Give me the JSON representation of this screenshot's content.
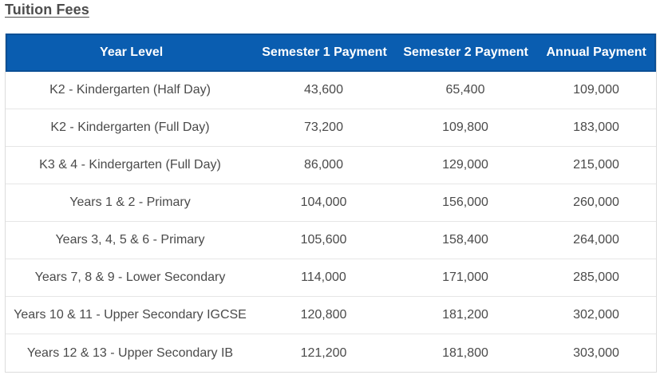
{
  "title": "Tuition Fees",
  "table": {
    "headers": [
      "Year Level",
      "Semester 1 Payment",
      "Semester 2 Payment",
      "Annual Payment"
    ],
    "rows": [
      [
        "K2 - Kindergarten (Half Day)",
        "43,600",
        "65,400",
        "109,000"
      ],
      [
        "K2 - Kindergarten (Full Day)",
        "73,200",
        "109,800",
        "183,000"
      ],
      [
        "K3 & 4 - Kindergarten (Full Day)",
        "86,000",
        "129,000",
        "215,000"
      ],
      [
        "Years 1 & 2 - Primary",
        "104,000",
        "156,000",
        "260,000"
      ],
      [
        "Years 3, 4, 5 & 6 - Primary",
        "105,600",
        "158,400",
        "264,000"
      ],
      [
        "Years 7, 8 & 9 - Lower Secondary",
        "114,000",
        "171,000",
        "285,000"
      ],
      [
        "Years 10 & 11 - Upper Secondary IGCSE",
        "120,800",
        "181,200",
        "302,000"
      ],
      [
        "Years 12 & 13 - Upper Secondary IB",
        "121,200",
        "181,800",
        "303,000"
      ]
    ]
  },
  "colors": {
    "header_background": "#0a5db0",
    "header_text": "#ffffff",
    "row_border": "#e6e6e6",
    "body_text": "#4a4a4a"
  }
}
